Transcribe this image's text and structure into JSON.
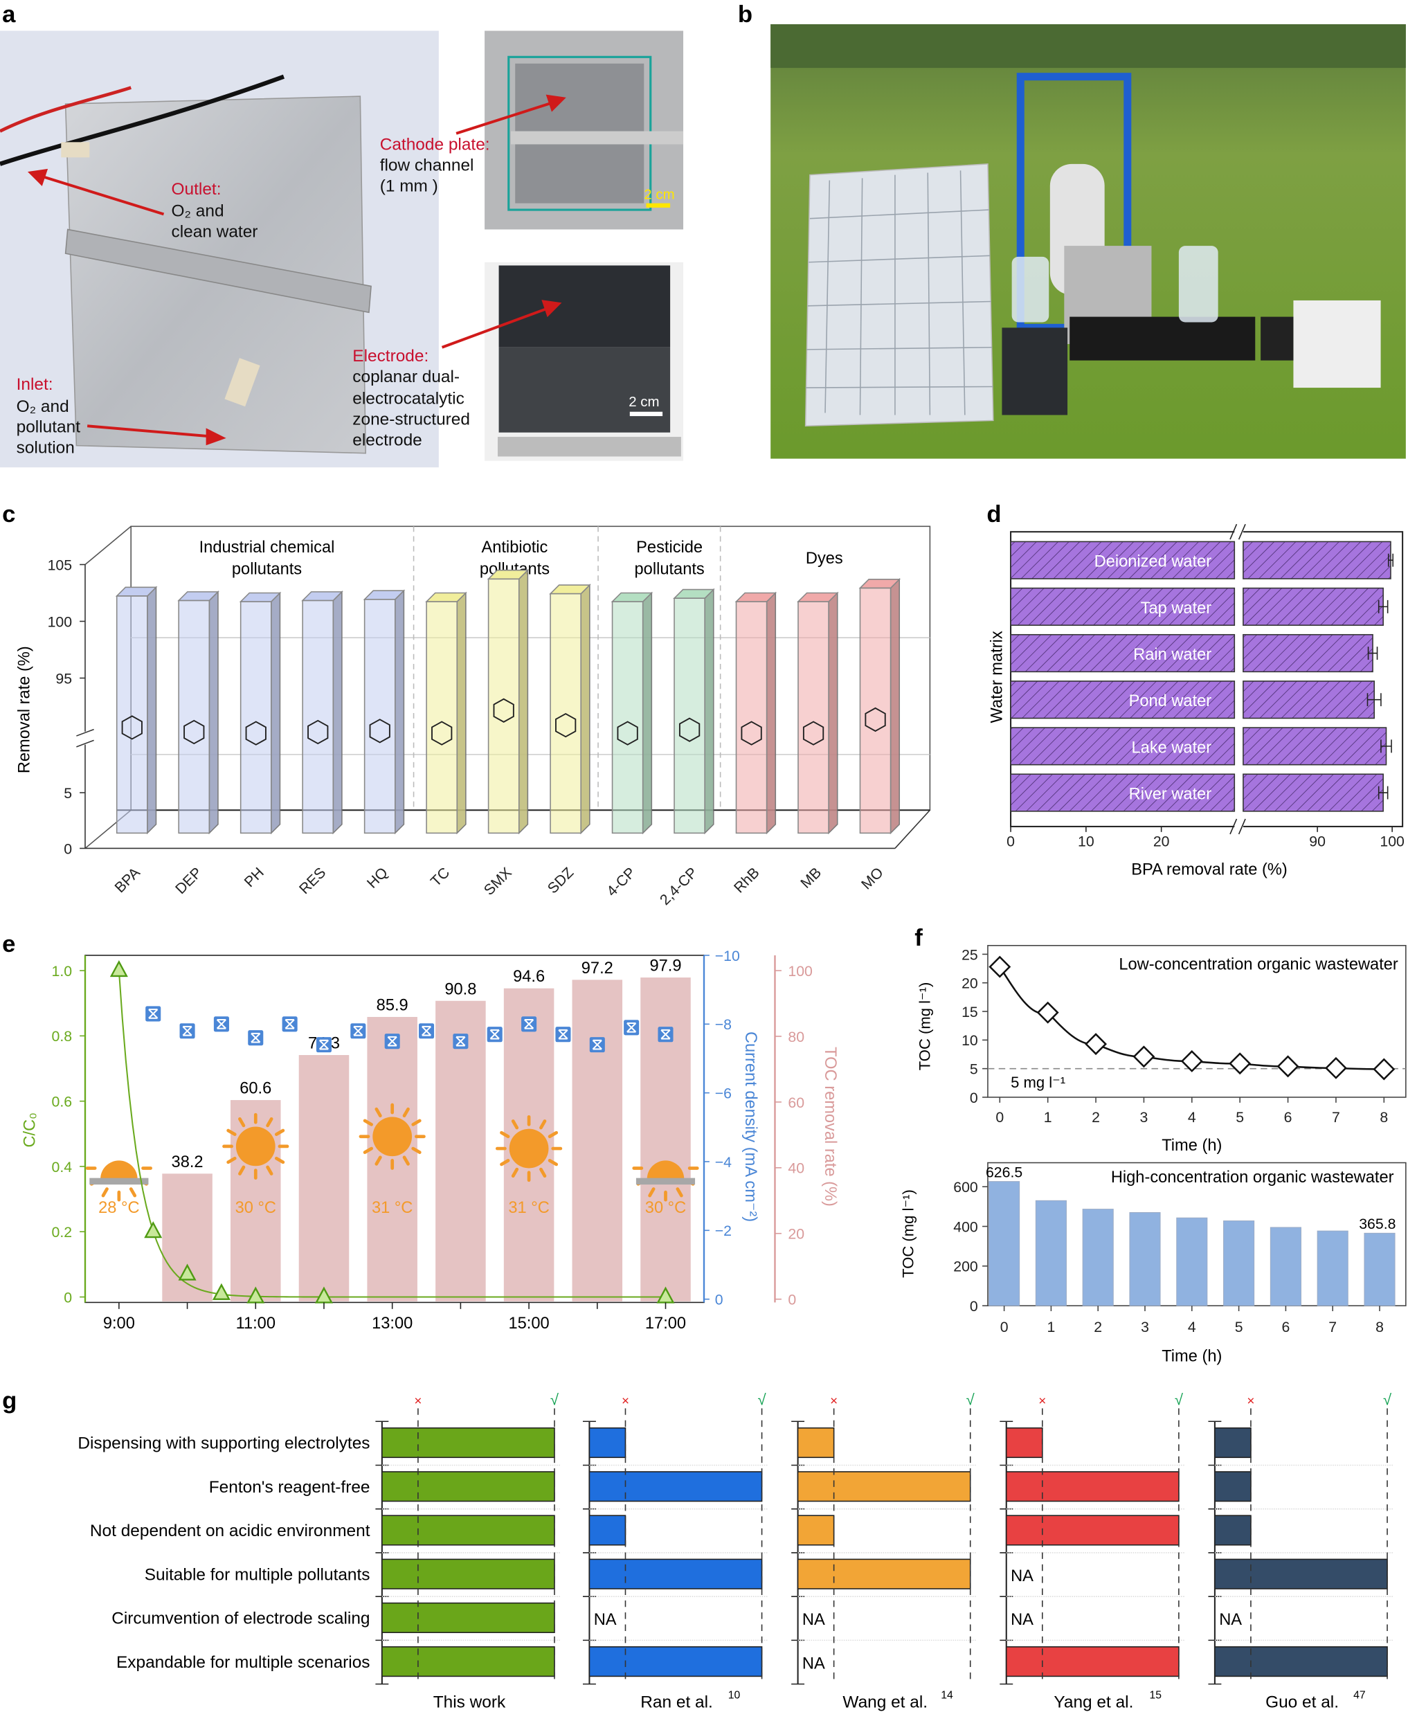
{
  "panel_labels": {
    "a": "a",
    "b": "b",
    "c": "c",
    "d": "d",
    "e": "e",
    "f": "f",
    "g": "g"
  },
  "panel_a": {
    "outlet_title": "Outlet:",
    "outlet_line1": "O₂ and",
    "outlet_line2": "clean water",
    "inlet_title": "Inlet:",
    "inlet_line1": "O₂ and",
    "inlet_line2": "pollutant",
    "inlet_line3": "solution",
    "cathode_title": "Cathode plate:",
    "cathode_line1": "flow channel",
    "cathode_line2": "(1 mm )",
    "cathode_scale": "2 cm",
    "electrode_title": "Electrode:",
    "electrode_line1": "coplanar dual-",
    "electrode_line2": "electrocatalytic",
    "electrode_line3": "zone-structured",
    "electrode_line4": "electrode",
    "electrode_scale": "2 cm"
  },
  "chart_data": [
    {
      "panel": "c",
      "type": "bar",
      "categories": [
        "BPA",
        "DEP",
        "PH",
        "RES",
        "HQ",
        "TC",
        "SMX",
        "SDZ",
        "4-CP",
        "2,4-CP",
        "RhB",
        "MB",
        "MO"
      ],
      "values": [
        99.5,
        99.9,
        100,
        99.9,
        99.8,
        100,
        98.0,
        99.3,
        100,
        99.7,
        100,
        100,
        98.8
      ],
      "ylabel": "Removal rate (%)",
      "yticks": [
        "0",
        "5",
        "95",
        "100",
        "105"
      ],
      "y_break": [
        5,
        95
      ],
      "groups": [
        {
          "lines": [
            "Industrial chemical",
            "pollutants"
          ],
          "first": 0,
          "last": 4,
          "color": "#c3cdf0"
        },
        {
          "lines": [
            "Antibiotic",
            "pollutants"
          ],
          "first": 5,
          "last": 7,
          "color": "#f1ee9c"
        },
        {
          "lines": [
            "Pesticide",
            "pollutants"
          ],
          "first": 8,
          "last": 9,
          "color": "#b4dfc2"
        },
        {
          "lines": [
            "Dyes"
          ],
          "first": 10,
          "last": 12,
          "color": "#f0a9a9"
        }
      ]
    },
    {
      "panel": "d",
      "type": "bar",
      "orientation": "horizontal",
      "categories": [
        "Deionized water",
        "Tap water",
        "Rain water",
        "Pond water",
        "Lake water",
        "River water"
      ],
      "values": [
        99.8,
        98.8,
        97.4,
        97.6,
        99.2,
        98.8
      ],
      "errors": [
        0.3,
        0.6,
        0.6,
        0.9,
        0.7,
        0.6
      ],
      "xlabel": "BPA removal rate (%)",
      "ylabel": "Water matrix",
      "xticks": [
        "0",
        "10",
        "20",
        "90",
        "100"
      ],
      "x_break": [
        30,
        80
      ],
      "color": "#a675de"
    },
    {
      "panel": "e",
      "type": "combo",
      "xticks": [
        "9:00",
        "11:00",
        "13:00",
        "15:00",
        "17:00"
      ],
      "c_c0": {
        "ylabel": "C/C₀",
        "yticks": [
          "0",
          "0.2",
          "0.4",
          "0.6",
          "0.8",
          "1.0"
        ],
        "times": [
          "9:00",
          "9:30",
          "10:00",
          "10:30",
          "11:00",
          "12:00",
          "17:00"
        ],
        "values": [
          1.0,
          0.2,
          0.07,
          0.01,
          0,
          0,
          0
        ],
        "color": "#6aaa1e"
      },
      "current_density": {
        "ylabel": "Current density (mA cm⁻²)",
        "yticks": [
          "0",
          "−2",
          "−4",
          "−6",
          "−8",
          "−10"
        ],
        "times": [
          "9:30",
          "10:00",
          "10:30",
          "11:00",
          "11:30",
          "12:00",
          "12:30",
          "13:00",
          "13:30",
          "14:00",
          "14:30",
          "15:00",
          "15:30",
          "16:00",
          "16:30",
          "17:00"
        ],
        "values": [
          -8.3,
          -7.8,
          -8.0,
          -7.6,
          -8.0,
          -7.4,
          -7.8,
          -7.5,
          -7.8,
          -7.5,
          -7.7,
          -8.0,
          -7.7,
          -7.4,
          -7.9,
          -7.7
        ],
        "color": "#4a86d6"
      },
      "toc_removal": {
        "ylabel": "TOC removal rate (%)",
        "yticks": [
          "0",
          "20",
          "40",
          "60",
          "80",
          "100"
        ],
        "times": [
          "10:00",
          "11:00",
          "12:00",
          "13:00",
          "14:00",
          "15:00",
          "16:00",
          "17:00"
        ],
        "values": [
          38.2,
          60.6,
          74.3,
          85.9,
          90.8,
          94.6,
          97.2,
          97.9
        ],
        "labels": [
          "38.2",
          "60.6",
          "74.3",
          "85.9",
          "90.8",
          "94.6",
          "97.2",
          "97.9"
        ],
        "color": "#e5c3c3"
      },
      "weather": [
        {
          "time": "9:00",
          "temp": "28 °C",
          "icon": "sunrise"
        },
        {
          "time": "11:00",
          "temp": "30 °C",
          "icon": "sun"
        },
        {
          "time": "13:00",
          "temp": "31 °C",
          "icon": "sun"
        },
        {
          "time": "15:00",
          "temp": "31 °C",
          "icon": "sun"
        },
        {
          "time": "17:00",
          "temp": "30 °C",
          "icon": "sunset"
        }
      ]
    },
    {
      "panel": "f-top",
      "type": "line",
      "title": "Low-concentration organic wastewater",
      "x": [
        0,
        1,
        2,
        3,
        4,
        5,
        6,
        7,
        8
      ],
      "values": [
        22.8,
        14.8,
        9.3,
        7.1,
        6.3,
        5.9,
        5.4,
        5.1,
        4.9
      ],
      "ylim": [
        0,
        25
      ],
      "yticks": [
        "0",
        "5",
        "10",
        "15",
        "20",
        "25"
      ],
      "threshold": 5,
      "threshold_label": "5 mg l⁻¹",
      "xlabel": "Time (h)",
      "ylabel": "TOC (mg l⁻¹)"
    },
    {
      "panel": "f-bottom",
      "type": "bar",
      "title": "High-concentration organic wastewater",
      "x": [
        0,
        1,
        2,
        3,
        4,
        5,
        6,
        7,
        8
      ],
      "values": [
        626.5,
        530,
        487,
        470,
        443,
        428,
        395,
        377,
        365.8
      ],
      "value_labels": [
        "626.5",
        "",
        "",
        "",
        "",
        "",
        "",
        "",
        "365.8"
      ],
      "ylim": [
        0,
        720
      ],
      "yticks": [
        "0",
        "200",
        "400",
        "600"
      ],
      "xlabel": "Time (h)",
      "ylabel": "TOC (mg l⁻¹)",
      "color": "#90b2e0"
    },
    {
      "panel": "g",
      "type": "bar",
      "orientation": "horizontal",
      "criteria": [
        "Dispensing with supporting electrolytes",
        "Fenton's reagent-free",
        "Not dependent on acidic environment",
        "Suitable for multiple pollutants",
        "Circumvention of electrode scaling",
        "Expandable for multiple scenarios"
      ],
      "no_mark": "×",
      "yes_mark": "√",
      "na_label": "NA",
      "studies": [
        {
          "name": "This work",
          "ref": "",
          "color": "#6aa61a",
          "values": [
            "yes",
            "yes",
            "yes",
            "yes",
            "yes",
            "yes"
          ]
        },
        {
          "name": "Ran et al.",
          "ref": "10",
          "color": "#1f6fde",
          "values": [
            "no",
            "yes",
            "no",
            "yes",
            "NA",
            "yes"
          ]
        },
        {
          "name": "Wang et al.",
          "ref": "14",
          "color": "#f2a536",
          "values": [
            "no",
            "yes",
            "no",
            "yes",
            "NA",
            "NA"
          ]
        },
        {
          "name": "Yang et al.",
          "ref": "15",
          "color": "#e84142",
          "values": [
            "no",
            "yes",
            "yes",
            "NA",
            "NA",
            "yes"
          ]
        },
        {
          "name": "Guo et al.",
          "ref": "47",
          "color": "#344c68",
          "values": [
            "no",
            "no",
            "no",
            "yes",
            "NA",
            "yes"
          ]
        }
      ]
    }
  ]
}
